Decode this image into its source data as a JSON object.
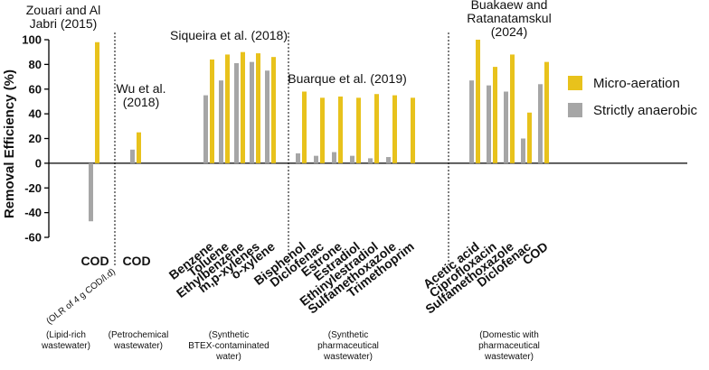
{
  "chart_data": {
    "type": "bar",
    "ylabel": "Removal Efficiency (%)",
    "ylim": [
      -60,
      100
    ],
    "yticks": [
      100,
      80,
      60,
      40,
      20,
      0,
      -20,
      -40,
      -60
    ],
    "grid": false,
    "legend_position": "right",
    "series": [
      {
        "name": "Micro-aeration",
        "color": "#E8C21C"
      },
      {
        "name": "Strictly anaerobic",
        "color": "#A6A6A6"
      }
    ],
    "groups": [
      {
        "study": "Zouari and Al Jabri (2015)",
        "study_lines": [
          "Zouari and Al",
          "Jabri (2015)"
        ],
        "caption_lines": [
          "(Lipid-rich",
          "wastewater)"
        ],
        "categories": [
          "COD"
        ],
        "note": "(OLR of 4 g COD/l.d)",
        "micro_aeration": [
          98
        ],
        "strictly_anaerobic": [
          -47
        ]
      },
      {
        "study": "Wu et al. (2018)",
        "study_lines": [
          "Wu et al.",
          "(2018)"
        ],
        "caption_lines": [
          "(Petrochemical",
          "wastewater)"
        ],
        "categories": [
          "COD"
        ],
        "micro_aeration": [
          25
        ],
        "strictly_anaerobic": [
          11
        ]
      },
      {
        "study": "Siqueira et al. (2018)",
        "study_lines": [
          "Siqueira et al. (2018)"
        ],
        "caption_lines": [
          "(Synthetic",
          "BTEX-contaminated",
          "water)"
        ],
        "categories": [
          "Benzene",
          "Toluene",
          "Ethylbenzene",
          "m,p-xylenes",
          "o-xylene"
        ],
        "micro_aeration": [
          84,
          88,
          90,
          89,
          86
        ],
        "strictly_anaerobic": [
          55,
          67,
          81,
          82,
          75
        ]
      },
      {
        "study": "Buarque et al. (2019)",
        "study_lines": [
          "Buarque et al. (2019)"
        ],
        "caption_lines": [
          "(Synthetic",
          "pharmaceutical",
          "wastewater)"
        ],
        "categories": [
          "Bisphenol",
          "Diclofenac",
          "Estrone",
          "Estradiol",
          "Ethinylestradiol",
          "Sulfamethoxazole",
          "Trimethoprim"
        ],
        "micro_aeration": [
          58,
          53,
          54,
          53,
          56,
          55,
          53
        ],
        "strictly_anaerobic": [
          8,
          6,
          9,
          6,
          4,
          5,
          null
        ]
      },
      {
        "study": "Buakaew and Ratanatamskul (2024)",
        "study_lines": [
          "Buakaew and",
          "Ratanatamskul",
          "(2024)"
        ],
        "caption_lines": [
          "(Domestic with",
          "pharmaceutical",
          "wastewater)"
        ],
        "categories": [
          "Acetic acid",
          "Ciprofloxacin",
          "Sulfamethoxazole",
          "Diclofenac",
          "COD"
        ],
        "micro_aeration": [
          100,
          78,
          88,
          41,
          82
        ],
        "strictly_anaerobic": [
          67,
          63,
          58,
          20,
          64
        ]
      }
    ]
  }
}
